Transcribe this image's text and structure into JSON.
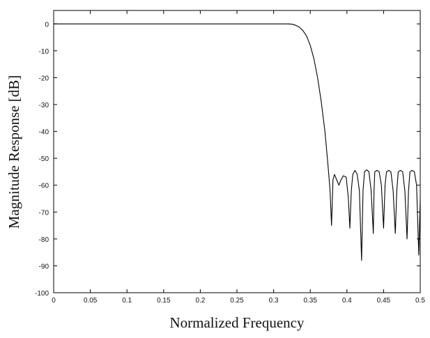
{
  "chart_data": {
    "type": "line",
    "title": "",
    "xlabel": "Normalized Frequency",
    "ylabel": "Magnitude Response [dB]",
    "xlim": [
      0,
      0.5
    ],
    "ylim": [
      -100,
      5
    ],
    "x_ticks": [
      0,
      0.05,
      0.1,
      0.15,
      0.2,
      0.25,
      0.3,
      0.35,
      0.4,
      0.45,
      0.5
    ],
    "x_tick_labels": [
      "0",
      "0.05",
      "0.1",
      "0.15",
      "0.2",
      "0.25",
      "0.3",
      "0.35",
      "0.4",
      "0.45",
      "0.5"
    ],
    "y_ticks": [
      0,
      -10,
      -20,
      -30,
      -40,
      -50,
      -60,
      -70,
      -80,
      -90,
      -100
    ],
    "y_tick_labels": [
      "0",
      "-10",
      "-20",
      "-30",
      "-40",
      "-50",
      "-60",
      "-70",
      "-80",
      "-90",
      "-100"
    ],
    "grid": false,
    "line_color": "#000000",
    "series": [
      {
        "x": [
          0,
          0.05,
          0.1,
          0.15,
          0.2,
          0.25,
          0.3,
          0.31,
          0.32,
          0.325,
          0.33,
          0.335,
          0.34,
          0.345,
          0.35,
          0.355,
          0.36,
          0.365,
          0.37,
          0.374,
          0.377,
          0.379,
          0.381,
          0.383,
          0.386,
          0.389,
          0.392,
          0.395,
          0.399,
          0.402,
          0.404,
          0.406,
          0.408,
          0.411,
          0.414,
          0.417,
          0.42,
          0.422,
          0.424,
          0.427,
          0.43,
          0.433,
          0.436,
          0.437,
          0.438,
          0.441,
          0.444,
          0.447,
          0.45,
          0.452,
          0.454,
          0.457,
          0.46,
          0.463,
          0.466,
          0.468,
          0.47,
          0.473,
          0.476,
          0.479,
          0.482,
          0.484,
          0.486,
          0.489,
          0.492,
          0.495,
          0.498,
          0.5
        ],
        "y": [
          0,
          0,
          0,
          0,
          0,
          0,
          0,
          0,
          0,
          -0.1,
          -0.5,
          -1.2,
          -2.5,
          -4.5,
          -8,
          -13,
          -20,
          -29,
          -40,
          -52,
          -62,
          -75,
          -58,
          -56,
          -58,
          -60,
          -58,
          -56.5,
          -57,
          -65,
          -76,
          -62,
          -56,
          -54.5,
          -56,
          -62,
          -88,
          -62,
          -55,
          -54.3,
          -55,
          -62,
          -78,
          -62,
          -55,
          -54.5,
          -55,
          -60,
          -76,
          -60,
          -55,
          -54.5,
          -55,
          -62,
          -78,
          -62,
          -55,
          -54.5,
          -55,
          -62,
          -80,
          -62,
          -55,
          -54.5,
          -55,
          -60,
          -86,
          -65
        ]
      }
    ]
  }
}
